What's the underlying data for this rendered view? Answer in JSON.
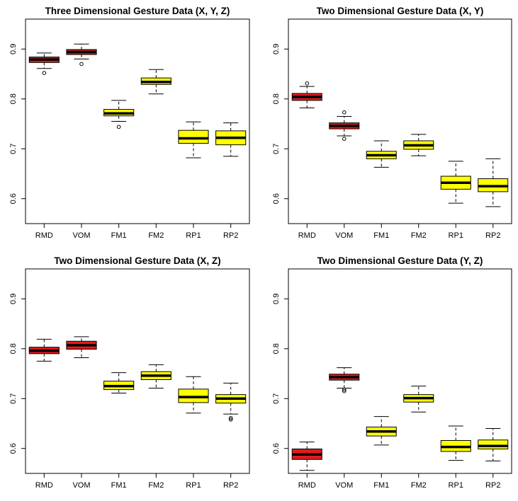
{
  "chart_data": [
    {
      "type": "box",
      "title": "Three Dimensional Gesture Data (X, Y, Z)",
      "categories": [
        "RMD",
        "VOM",
        "FM1",
        "FM2",
        "RP1",
        "RP2"
      ],
      "colors": [
        "#e31a1c",
        "#e31a1c",
        "#ffff00",
        "#ffff00",
        "#ffff00",
        "#ffff00"
      ],
      "yticks": [
        0.6,
        0.7,
        0.8,
        0.9
      ],
      "ylim": [
        0.55,
        0.96
      ],
      "boxes": [
        {
          "min": 0.861,
          "q1": 0.873,
          "median": 0.879,
          "q3": 0.884,
          "max": 0.892,
          "outliers": [
            0.852
          ]
        },
        {
          "min": 0.88,
          "q1": 0.889,
          "median": 0.894,
          "q3": 0.899,
          "max": 0.91,
          "outliers": [
            0.87
          ]
        },
        {
          "min": 0.755,
          "q1": 0.766,
          "median": 0.771,
          "q3": 0.779,
          "max": 0.797,
          "outliers": [
            0.744
          ]
        },
        {
          "min": 0.81,
          "q1": 0.829,
          "median": 0.834,
          "q3": 0.842,
          "max": 0.859,
          "outliers": []
        },
        {
          "min": 0.682,
          "q1": 0.711,
          "median": 0.721,
          "q3": 0.737,
          "max": 0.754,
          "outliers": []
        },
        {
          "min": 0.685,
          "q1": 0.708,
          "median": 0.722,
          "q3": 0.736,
          "max": 0.752,
          "outliers": []
        }
      ]
    },
    {
      "type": "box",
      "title": "Two Dimensional Gesture Data (X, Y)",
      "categories": [
        "RMD",
        "VOM",
        "FM1",
        "FM2",
        "RP1",
        "RP2"
      ],
      "colors": [
        "#e31a1c",
        "#e31a1c",
        "#ffff00",
        "#ffff00",
        "#ffff00",
        "#ffff00"
      ],
      "yticks": [
        0.6,
        0.7,
        0.8,
        0.9
      ],
      "ylim": [
        0.55,
        0.96
      ],
      "boxes": [
        {
          "min": 0.782,
          "q1": 0.797,
          "median": 0.804,
          "q3": 0.811,
          "max": 0.825,
          "outliers": [
            0.831
          ]
        },
        {
          "min": 0.726,
          "q1": 0.74,
          "median": 0.746,
          "q3": 0.752,
          "max": 0.765,
          "outliers": [
            0.773,
            0.72
          ]
        },
        {
          "min": 0.663,
          "q1": 0.68,
          "median": 0.687,
          "q3": 0.695,
          "max": 0.716,
          "outliers": []
        },
        {
          "min": 0.686,
          "q1": 0.699,
          "median": 0.707,
          "q3": 0.716,
          "max": 0.729,
          "outliers": []
        },
        {
          "min": 0.591,
          "q1": 0.619,
          "median": 0.632,
          "q3": 0.645,
          "max": 0.675,
          "outliers": []
        },
        {
          "min": 0.584,
          "q1": 0.614,
          "median": 0.625,
          "q3": 0.64,
          "max": 0.68,
          "outliers": []
        }
      ]
    },
    {
      "type": "box",
      "title": "Two Dimensional Gesture Data (X, Z)",
      "categories": [
        "RMD",
        "VOM",
        "FM1",
        "FM2",
        "RP1",
        "RP2"
      ],
      "colors": [
        "#e31a1c",
        "#e31a1c",
        "#ffff00",
        "#ffff00",
        "#ffff00",
        "#ffff00"
      ],
      "yticks": [
        0.6,
        0.7,
        0.8,
        0.9
      ],
      "ylim": [
        0.55,
        0.96
      ],
      "boxes": [
        {
          "min": 0.775,
          "q1": 0.79,
          "median": 0.796,
          "q3": 0.803,
          "max": 0.819,
          "outliers": []
        },
        {
          "min": 0.782,
          "q1": 0.799,
          "median": 0.807,
          "q3": 0.815,
          "max": 0.824,
          "outliers": []
        },
        {
          "min": 0.711,
          "q1": 0.718,
          "median": 0.725,
          "q3": 0.735,
          "max": 0.752,
          "outliers": []
        },
        {
          "min": 0.721,
          "q1": 0.738,
          "median": 0.746,
          "q3": 0.754,
          "max": 0.768,
          "outliers": []
        },
        {
          "min": 0.671,
          "q1": 0.692,
          "median": 0.703,
          "q3": 0.719,
          "max": 0.744,
          "outliers": []
        },
        {
          "min": 0.669,
          "q1": 0.691,
          "median": 0.7,
          "q3": 0.708,
          "max": 0.731,
          "outliers": [
            0.661,
            0.658
          ]
        }
      ]
    },
    {
      "type": "box",
      "title": "Two Dimensional Gesture Data (Y, Z)",
      "categories": [
        "RMD",
        "VOM",
        "FM1",
        "FM2",
        "RP1",
        "RP2"
      ],
      "colors": [
        "#e31a1c",
        "#e31a1c",
        "#ffff00",
        "#ffff00",
        "#ffff00",
        "#ffff00"
      ],
      "yticks": [
        0.6,
        0.7,
        0.8,
        0.9
      ],
      "ylim": [
        0.55,
        0.96
      ],
      "boxes": [
        {
          "min": 0.556,
          "q1": 0.578,
          "median": 0.588,
          "q3": 0.599,
          "max": 0.613,
          "outliers": []
        },
        {
          "min": 0.721,
          "q1": 0.737,
          "median": 0.743,
          "q3": 0.749,
          "max": 0.762,
          "outliers": [
            0.718,
            0.715
          ]
        },
        {
          "min": 0.607,
          "q1": 0.625,
          "median": 0.634,
          "q3": 0.643,
          "max": 0.664,
          "outliers": []
        },
        {
          "min": 0.673,
          "q1": 0.693,
          "median": 0.701,
          "q3": 0.708,
          "max": 0.725,
          "outliers": []
        },
        {
          "min": 0.576,
          "q1": 0.594,
          "median": 0.603,
          "q3": 0.616,
          "max": 0.645,
          "outliers": []
        },
        {
          "min": 0.575,
          "q1": 0.599,
          "median": 0.605,
          "q3": 0.617,
          "max": 0.64,
          "outliers": []
        }
      ]
    }
  ]
}
